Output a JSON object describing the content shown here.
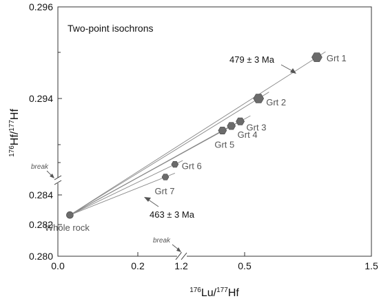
{
  "chart_data": {
    "type": "scatter",
    "title": "Two-point isochrons",
    "xlabel": {
      "sup1": "176",
      "base1": "Lu/",
      "sup2": "177",
      "base2": "Hf"
    },
    "ylabel": {
      "sup1": "176",
      "base1": "Hf/",
      "sup2": "177",
      "base2": "Hf"
    },
    "xlim": [
      0.0,
      1.5
    ],
    "x_ticks": [
      0.0,
      0.2,
      0.5,
      1.2,
      1.5
    ],
    "x_tick_labels": [
      "0.0",
      "0.2",
      "0.5",
      "1.2",
      "1.5"
    ],
    "y_lower_ticks": [
      0.28,
      0.282,
      0.284
    ],
    "y_lower_tick_labels": [
      "0.280",
      "0.282",
      "0.284"
    ],
    "y_upper_ticks": [
      0.294,
      0.296
    ],
    "y_upper_tick_labels": [
      "0.294",
      "0.296"
    ],
    "axis_breaks": {
      "x": "break",
      "y": "break"
    },
    "grid": false,
    "series": [
      {
        "points": [
          {
            "label": "Whole rock",
            "x": 0.03,
            "y": 0.2826,
            "marker": "circle"
          },
          {
            "label": "Grt 1",
            "x": 1.414,
            "y": 0.2949,
            "marker": "hexagon-large"
          },
          {
            "label": "Grt 2",
            "x": 1.322,
            "y": 0.294,
            "marker": "hexagon-large"
          },
          {
            "label": "Grt 3",
            "x": 1.293,
            "y": 0.2935,
            "marker": "hexagon"
          },
          {
            "label": "Grt 4",
            "x": 1.279,
            "y": 0.2934,
            "marker": "hexagon"
          },
          {
            "label": "Grt 5",
            "x": 1.265,
            "y": 0.2933,
            "marker": "hexagon"
          },
          {
            "label": "Grt 6",
            "x": 1.19,
            "y": 0.2858,
            "marker": "hexagon-small"
          },
          {
            "label": "Grt 7",
            "x": 1.175,
            "y": 0.285,
            "marker": "hexagon-small"
          }
        ]
      }
    ],
    "annotations": [
      {
        "text": "479 ± 3 Ma",
        "refers_to": "Grt 1"
      },
      {
        "text": "463 ± 3 Ma",
        "refers_to": "Grt 7"
      }
    ]
  }
}
